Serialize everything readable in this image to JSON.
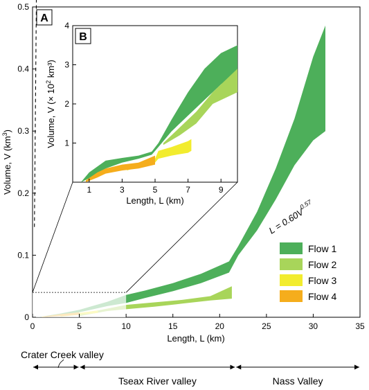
{
  "colors": {
    "flow1": "#4daf5a",
    "flow2": "#a8d55a",
    "flow3": "#f2ec2e",
    "flow4": "#f5ad1c",
    "fade": "#d4e8cf"
  },
  "chart_data": [
    {
      "type": "area",
      "panel_label": "A",
      "xlabel": "Length, L (km)",
      "ylabel": "Volume, V (km³)",
      "xlim": [
        0,
        35
      ],
      "ylim": [
        0,
        0.5
      ],
      "x_ticks": [
        "0",
        "5",
        "10",
        "15",
        "20",
        "25",
        "30",
        "35"
      ],
      "y_ticks": [
        "0",
        "0.1",
        "0.2",
        "0.3",
        "0.4",
        "0.5"
      ],
      "legend_position": "right",
      "series": [
        {
          "name": "Flow 1",
          "x": [
            0.5,
            3,
            5,
            8,
            10,
            12,
            15,
            18,
            21,
            22,
            24,
            26,
            28,
            30,
            31.3
          ],
          "lower": [
            0,
            0.004,
            0.008,
            0.018,
            0.023,
            0.031,
            0.042,
            0.055,
            0.072,
            0.1,
            0.14,
            0.19,
            0.245,
            0.285,
            0.3
          ],
          "upper": [
            0,
            0.006,
            0.012,
            0.025,
            0.036,
            0.043,
            0.055,
            0.07,
            0.09,
            0.115,
            0.17,
            0.24,
            0.32,
            0.42,
            0.47
          ]
        },
        {
          "name": "Flow 2",
          "x": [
            5,
            8,
            10,
            13,
            16,
            19,
            21.3
          ],
          "lower": [
            0.002,
            0.01,
            0.013,
            0.017,
            0.022,
            0.027,
            0.03
          ],
          "upper": [
            0.005,
            0.014,
            0.02,
            0.024,
            0.028,
            0.034,
            0.05
          ]
        },
        {
          "name": "Flow 3",
          "x": [
            3,
            5,
            7
          ],
          "lower": [
            0.001,
            0.004,
            0.007
          ],
          "upper": [
            0.002,
            0.007,
            0.011
          ]
        },
        {
          "name": "Flow 4",
          "x": [
            1,
            3,
            5
          ],
          "lower": [
            0,
            0.002,
            0.004
          ],
          "upper": [
            0.001,
            0.005,
            0.008
          ]
        }
      ],
      "fit": {
        "label": "L = 0.60V",
        "exponent": "0.57",
        "coef": 0.6,
        "power": 0.57
      }
    },
    {
      "type": "area",
      "panel_label": "B",
      "xlabel": "Length, L (km)",
      "ylabel": "Volume, V (× 10² km³)",
      "xlim": [
        0,
        10
      ],
      "ylim": [
        0,
        4
      ],
      "x_ticks": [
        "1",
        "3",
        "5",
        "7",
        "9"
      ],
      "y_ticks": [
        "1",
        "2",
        "3",
        "4"
      ],
      "series": [
        {
          "name": "Flow 1",
          "x": [
            0.5,
            1,
            2,
            3,
            4,
            4.8,
            5.2,
            6,
            7,
            8,
            9,
            10
          ],
          "lower": [
            0,
            0.1,
            0.35,
            0.5,
            0.6,
            0.7,
            0.9,
            1.3,
            1.7,
            2.1,
            2.5,
            2.8
          ],
          "upper": [
            0,
            0.25,
            0.55,
            0.62,
            0.68,
            0.78,
            1.0,
            1.6,
            2.3,
            2.9,
            3.3,
            3.5
          ]
        },
        {
          "name": "Flow 2",
          "x": [
            5.5,
            6.5,
            7.5,
            8.5,
            10
          ],
          "lower": [
            0.95,
            1.2,
            1.5,
            2.0,
            2.3
          ],
          "upper": [
            1.0,
            1.4,
            1.8,
            2.3,
            2.9
          ]
        },
        {
          "name": "Flow 3",
          "x": [
            3.3,
            4,
            5,
            5.2,
            6,
            7,
            7.2
          ],
          "lower": [
            0.3,
            0.4,
            0.5,
            0.6,
            0.68,
            0.75,
            0.8
          ],
          "upper": [
            0.4,
            0.5,
            0.6,
            0.8,
            0.9,
            1.05,
            1.1
          ]
        },
        {
          "name": "Flow 4",
          "x": [
            0.8,
            1.5,
            2,
            3,
            4,
            5
          ],
          "lower": [
            0,
            0.12,
            0.22,
            0.3,
            0.35,
            0.45
          ],
          "upper": [
            0.05,
            0.25,
            0.35,
            0.45,
            0.5,
            0.68
          ]
        }
      ]
    }
  ],
  "valleys": [
    {
      "label": "Crater Creek valley",
      "x_start": 0,
      "x_end": 5
    },
    {
      "label": "Tseax River valley",
      "x_start": 5,
      "x_end": 21.7
    },
    {
      "label": "Nass Valley",
      "x_start": 21.7,
      "x_end": 35
    }
  ]
}
